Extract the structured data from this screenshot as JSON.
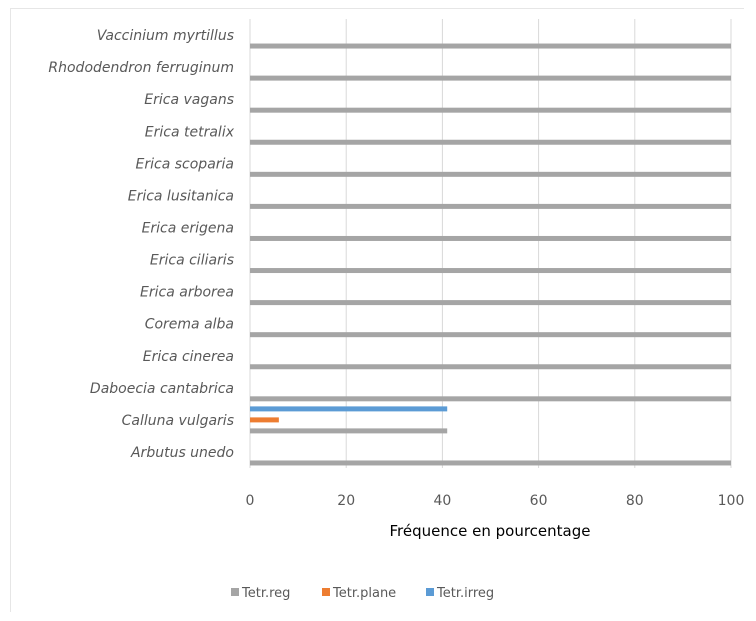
{
  "chart_data": {
    "type": "bar",
    "orientation": "horizontal",
    "categories": [
      "Vaccinium myrtillus",
      "Rhododendron ferruginum",
      "Erica vagans",
      "Erica tetralix",
      "Erica scoparia",
      "Erica lusitanica",
      "Erica erigena",
      "Erica ciliaris",
      "Erica arborea",
      "Corema alba",
      "Erica cinerea",
      "Daboecia cantabrica",
      "Calluna vulgaris",
      "Arbutus unedo"
    ],
    "series": [
      {
        "name": "Tetr.reg",
        "color": "#a5a5a5",
        "values": [
          100,
          100,
          100,
          100,
          100,
          100,
          100,
          100,
          100,
          100,
          100,
          100,
          41,
          100
        ]
      },
      {
        "name": "Tetr.plane",
        "color": "#ed7d31",
        "values": [
          0,
          0,
          0,
          0,
          0,
          0,
          0,
          0,
          0,
          0,
          0,
          0,
          6,
          0
        ]
      },
      {
        "name": "Tetr.irreg",
        "color": "#5b9bd5",
        "values": [
          0,
          0,
          0,
          0,
          0,
          0,
          0,
          0,
          0,
          0,
          0,
          0,
          41,
          0
        ]
      }
    ],
    "xlabel": "Fréquence en pourcentage",
    "ylabel": "",
    "xlim": [
      0,
      100
    ],
    "xticks": [
      "0",
      "20",
      "40",
      "60",
      "80",
      "100"
    ],
    "grid": true,
    "legend_position": "bottom"
  }
}
